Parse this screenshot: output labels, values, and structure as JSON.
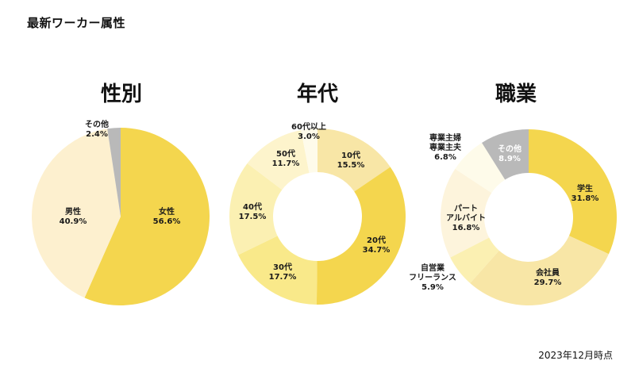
{
  "page_title": "最新ワーカー属性",
  "footer_note": "2023年12月時点",
  "chart_data": [
    {
      "type": "pie",
      "title": "性別",
      "slices": [
        {
          "label": "女性",
          "pct_label": "56.6%",
          "value": 56.6,
          "color": "#f4d64e"
        },
        {
          "label": "男性",
          "pct_label": "40.9%",
          "value": 40.9,
          "color": "#fdf0cf"
        },
        {
          "label": "その他",
          "pct_label": "2.4%",
          "value": 2.4,
          "color": "#b9b9b9"
        }
      ]
    },
    {
      "type": "donut",
      "title": "年代",
      "slices": [
        {
          "label": "10代",
          "pct_label": "15.5%",
          "value": 15.5,
          "color": "#f8e6a6"
        },
        {
          "label": "20代",
          "pct_label": "34.7%",
          "value": 34.7,
          "color": "#f4d64e"
        },
        {
          "label": "30代",
          "pct_label": "17.7%",
          "value": 17.7,
          "color": "#f9e98a"
        },
        {
          "label": "40代",
          "pct_label": "17.5%",
          "value": 17.5,
          "color": "#fbf0b2"
        },
        {
          "label": "50代",
          "pct_label": "11.7%",
          "value": 11.7,
          "color": "#fdf4cc"
        },
        {
          "label": "60代以上",
          "pct_label": "3.0%",
          "value": 3.0,
          "color": "#fefbea"
        }
      ]
    },
    {
      "type": "donut",
      "title": "職業",
      "slices": [
        {
          "label": "学生",
          "pct_label": "31.8%",
          "value": 31.8,
          "color": "#f4d64e"
        },
        {
          "label": "会社員",
          "pct_label": "29.7%",
          "value": 29.7,
          "color": "#f8e6a6"
        },
        {
          "label": "自営業\nフリーランス",
          "pct_label": "5.9%",
          "value": 5.9,
          "color": "#fbf0b2"
        },
        {
          "label": "パート\nアルバイト",
          "pct_label": "16.8%",
          "value": 16.8,
          "color": "#fdf4dc"
        },
        {
          "label": "専業主婦\n専業主夫",
          "pct_label": "6.8%",
          "value": 6.8,
          "color": "#fefbea"
        },
        {
          "label": "その他",
          "pct_label": "8.9%",
          "value": 8.9,
          "color": "#b9b9b9",
          "label_light": true
        }
      ]
    }
  ]
}
